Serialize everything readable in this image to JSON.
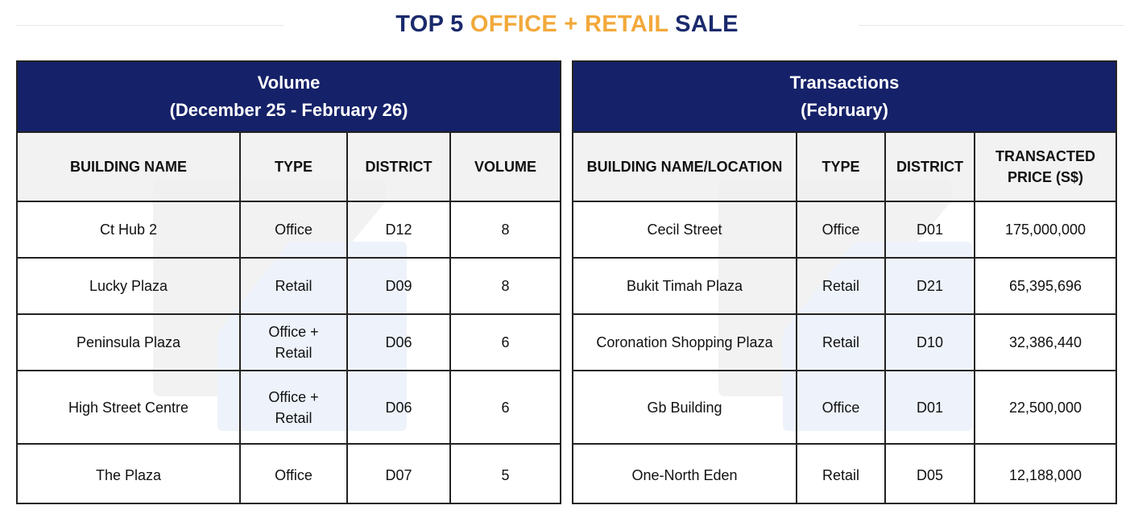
{
  "title": {
    "part1": "TOP 5",
    "part2": "OFFICE + RETAIL",
    "part3": "SALE"
  },
  "volume_panel": {
    "heading_line1": "Volume",
    "heading_line2": "(December 25 - February 26)",
    "columns": [
      "BUILDING NAME",
      "TYPE",
      "DISTRICT",
      "VOLUME"
    ],
    "rows": [
      {
        "name": "Ct Hub 2",
        "type": "Office",
        "district": "D12",
        "volume": "8"
      },
      {
        "name": "Lucky Plaza",
        "type": "Retail",
        "district": "D09",
        "volume": "8"
      },
      {
        "name": "Peninsula Plaza",
        "type": "Office + Retail",
        "district": "D06",
        "volume": "6"
      },
      {
        "name": "High Street Centre",
        "type": "Office + Retail",
        "district": "D06",
        "volume": "6"
      },
      {
        "name": "The Plaza",
        "type": "Office",
        "district": "D07",
        "volume": "5"
      }
    ]
  },
  "transactions_panel": {
    "heading_line1": "Transactions",
    "heading_line2": "(February)",
    "columns": [
      "BUILDING NAME/LOCATION",
      "TYPE",
      "DISTRICT",
      "TRANSACTED PRICE (S$)"
    ],
    "rows": [
      {
        "name": "Cecil Street",
        "type": "Office",
        "district": "D01",
        "price": "175,000,000"
      },
      {
        "name": "Bukit Timah Plaza",
        "type": "Retail",
        "district": "D21",
        "price": "65,395,696"
      },
      {
        "name": "Coronation Shopping Plaza",
        "type": "Retail",
        "district": "D10",
        "price": "32,386,440"
      },
      {
        "name": "Gb Building",
        "type": "Office",
        "district": "D01",
        "price": "22,500,000"
      },
      {
        "name": "One-North Eden",
        "type": "Retail",
        "district": "D05",
        "price": "12,188,000"
      }
    ]
  },
  "colors": {
    "navy": "#152168",
    "title_navy": "#1a2a6c",
    "accent_orange": "#f2a93b",
    "header_gray": "#f0f0f0"
  }
}
